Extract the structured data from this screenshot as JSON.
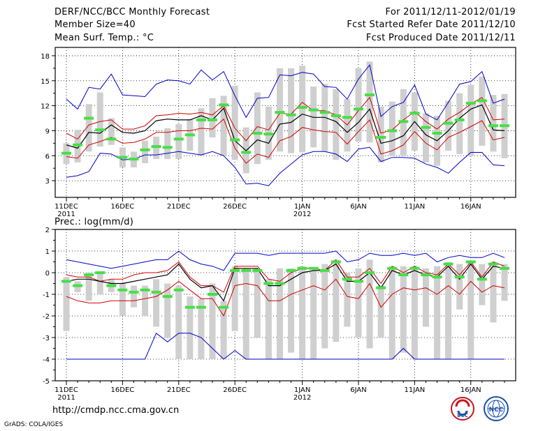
{
  "header": {
    "title": "DERF/NCC/BCC Monthly Forecast",
    "member": "Member Size=40",
    "forecast_period": "For 2011/12/11-2012/01/19",
    "started": "Fcst Started Refer Date 2011/12/10",
    "produced": "Fcst Produced Date 2011/12/11"
  },
  "footer": {
    "url": "http://cmdp.ncc.cma.gov.cn",
    "grads": "GrADS: COLA/IGES",
    "logo_bcc": "BCC",
    "logo_ncc": "NCC"
  },
  "colors": {
    "ensemble_mean": "#000000",
    "std_band": "#d00000",
    "extremes": "#0000c8",
    "member_bar": "#cfcfcf",
    "member_median": "#44e044",
    "grid": "#000000"
  },
  "chart_data": [
    {
      "type": "line",
      "title": "Mean Surf. Temp.: °C",
      "ylim": [
        1,
        19
      ],
      "yticks": [
        3,
        6,
        9,
        12,
        15,
        18
      ],
      "xlim": [
        0,
        39
      ],
      "x": [
        0,
        1,
        2,
        3,
        4,
        5,
        6,
        7,
        8,
        9,
        10,
        11,
        12,
        13,
        14,
        15,
        16,
        17,
        18,
        19,
        20,
        21,
        22,
        23,
        24,
        25,
        26,
        27,
        28,
        29,
        30,
        31,
        32,
        33,
        34,
        35,
        36,
        37,
        38,
        39
      ],
      "xticks": [
        {
          "x": 0,
          "label": "11DEC",
          "sub": "2011"
        },
        {
          "x": 5,
          "label": "16DEC",
          "sub": ""
        },
        {
          "x": 10,
          "label": "21DEC",
          "sub": ""
        },
        {
          "x": 15,
          "label": "26DEC",
          "sub": ""
        },
        {
          "x": 21,
          "label": "1JAN",
          "sub": "2012"
        },
        {
          "x": 26,
          "label": "6JAN",
          "sub": ""
        },
        {
          "x": 31,
          "label": "11JAN",
          "sub": ""
        },
        {
          "x": 36,
          "label": "16JAN",
          "sub": ""
        }
      ],
      "series": [
        {
          "name": "max",
          "role": "extremes",
          "values": [
            3.4,
            3.6,
            4.1,
            6.3,
            6.2,
            5.5,
            5.6,
            6.1,
            6.1,
            6.3,
            6.5,
            6.3,
            6.1,
            6.5,
            6.0,
            4.6,
            2.6,
            2.7,
            2.4,
            3.9,
            5.0,
            6.1,
            6.5,
            6.5,
            6.2,
            5.3,
            6.8,
            7.0,
            5.3,
            5.8,
            5.8,
            5.7,
            5.0,
            4.6,
            3.9,
            5.2,
            6.4,
            6.4,
            4.9,
            4.8
          ]
        },
        {
          "name": "min_top",
          "role": "extremes",
          "values": [
            12.8,
            11.6,
            14.2,
            14.0,
            15.8,
            13.3,
            13.2,
            13.1,
            14.6,
            15.1,
            15.0,
            14.6,
            16.3,
            15.1,
            16.1,
            13.2,
            10.6,
            12.9,
            13.0,
            15.7,
            15.6,
            16.0,
            15.8,
            14.3,
            14.2,
            12.8,
            15.2,
            16.9,
            10.7,
            11.9,
            12.4,
            14.5,
            11.0,
            10.3,
            12.4,
            14.6,
            14.9,
            16.1,
            12.3,
            12.8
          ]
        },
        {
          "name": "upper",
          "role": "std",
          "values": [
            8.7,
            8.0,
            9.7,
            10.1,
            10.3,
            9.2,
            9.2,
            9.6,
            10.8,
            10.9,
            11.1,
            11.0,
            11.2,
            10.9,
            12.0,
            9.3,
            7.8,
            9.5,
            9.1,
            11.1,
            11.0,
            12.4,
            11.4,
            11.4,
            10.9,
            9.7,
            11.4,
            13.0,
            8.7,
            9.1,
            10.3,
            11.3,
            10.1,
            9.2,
            10.4,
            11.2,
            12.2,
            13.0,
            10.3,
            10.4
          ]
        },
        {
          "name": "mean",
          "role": "mean",
          "values": [
            7.3,
            6.9,
            8.8,
            8.7,
            9.7,
            8.8,
            8.7,
            9.0,
            10.2,
            10.4,
            10.3,
            10.3,
            10.8,
            10.3,
            11.7,
            7.8,
            6.6,
            7.9,
            7.5,
            9.8,
            10.0,
            11.0,
            10.6,
            10.6,
            10.1,
            8.8,
            10.0,
            11.6,
            7.5,
            7.8,
            8.4,
            10.1,
            8.5,
            7.8,
            9.0,
            10.5,
            11.6,
            12.1,
            9.1,
            9.0
          ]
        },
        {
          "name": "lower",
          "role": "std",
          "values": [
            5.9,
            5.7,
            7.3,
            7.7,
            8.2,
            7.5,
            7.6,
            8.0,
            8.8,
            8.8,
            9.0,
            9.0,
            9.3,
            9.2,
            10.4,
            6.9,
            5.1,
            6.2,
            5.8,
            7.8,
            8.3,
            9.4,
            9.1,
            8.9,
            8.8,
            7.4,
            8.9,
            10.3,
            6.2,
            6.6,
            7.3,
            8.9,
            7.5,
            6.7,
            8.2,
            8.8,
            9.5,
            10.2,
            7.9,
            8.2
          ]
        }
      ],
      "bars": {
        "low": [
          5.0,
          5.2,
          6.5,
          7.1,
          7.3,
          4.6,
          4.6,
          5.1,
          5.6,
          5.6,
          5.6,
          6.6,
          6.0,
          8.2,
          6.0,
          5.5,
          3.9,
          5.0,
          5.5,
          6.5,
          6.3,
          6.4,
          7.0,
          6.5,
          5.5,
          6.5,
          7.7,
          7.6,
          5.2,
          6.0,
          6.0,
          6.6,
          5.2,
          4.8,
          6.6,
          6.2,
          6.0,
          7.2,
          6.5,
          5.7
        ],
        "high": [
          7.5,
          9.1,
          12.2,
          13.6,
          10.5,
          7.0,
          6.5,
          7.8,
          8.3,
          9.3,
          9.8,
          10.4,
          11.7,
          12.9,
          13.2,
          14.4,
          9.4,
          13.6,
          11.9,
          16.5,
          16.5,
          16.8,
          14.3,
          14.6,
          14.0,
          12.8,
          16.5,
          17.3,
          11.9,
          12.5,
          14.0,
          13.6,
          11.1,
          10.8,
          12.6,
          13.5,
          14.5,
          15.5,
          13.3,
          13.4
        ],
        "median": [
          6.3,
          7.3,
          10.5,
          9.1,
          8.0,
          5.8,
          5.6,
          6.7,
          7.1,
          7.0,
          8.0,
          8.5,
          10.3,
          10.3,
          12.1,
          7.9,
          6.4,
          8.7,
          8.6,
          11.2,
          10.9,
          11.8,
          11.5,
          11.2,
          10.8,
          10.6,
          11.6,
          13.3,
          8.2,
          9.0,
          10.1,
          11.1,
          9.4,
          8.7,
          9.9,
          10.3,
          12.3,
          12.6,
          9.6,
          9.6
        ]
      }
    },
    {
      "type": "line",
      "title": "Prec.: log(mm/d)",
      "ylim": [
        -5,
        2
      ],
      "yticks": [
        -5,
        -4,
        -3,
        -2,
        -1,
        0,
        1,
        2
      ],
      "xlim": [
        0,
        39
      ],
      "xticks": [
        {
          "x": 0,
          "label": "11DEC",
          "sub": "2011"
        },
        {
          "x": 5,
          "label": "16DEC",
          "sub": ""
        },
        {
          "x": 10,
          "label": "21DEC",
          "sub": ""
        },
        {
          "x": 15,
          "label": "26DEC",
          "sub": ""
        },
        {
          "x": 21,
          "label": "1JAN",
          "sub": "2012"
        },
        {
          "x": 26,
          "label": "6JAN",
          "sub": ""
        },
        {
          "x": 31,
          "label": "11JAN",
          "sub": ""
        },
        {
          "x": 36,
          "label": "16JAN",
          "sub": ""
        }
      ],
      "series": [
        {
          "name": "max_top",
          "role": "extremes",
          "values": [
            0.6,
            0.5,
            0.4,
            0.3,
            0.2,
            0.3,
            0.4,
            0.5,
            0.6,
            0.6,
            1.0,
            0.6,
            0.4,
            0.3,
            0.1,
            0.9,
            0.9,
            0.9,
            0.8,
            0.9,
            0.9,
            0.9,
            0.9,
            0.9,
            1.0,
            0.5,
            0.6,
            0.9,
            0.8,
            0.8,
            0.9,
            0.8,
            0.9,
            0.5,
            0.7,
            0.8,
            0.7,
            0.7,
            0.9,
            0.7
          ]
        },
        {
          "name": "upper",
          "role": "std",
          "values": [
            -0.1,
            -0.2,
            -0.2,
            -0.4,
            -0.3,
            -0.3,
            -0.1,
            0.0,
            0.0,
            0.1,
            0.5,
            -0.2,
            -0.6,
            -0.6,
            -0.9,
            0.3,
            0.3,
            0.3,
            -0.3,
            -0.4,
            0.0,
            0.2,
            0.2,
            0.1,
            0.6,
            -0.2,
            -0.2,
            0.2,
            -0.5,
            0.3,
            0.0,
            0.3,
            0.0,
            -0.1,
            0.4,
            -0.1,
            0.5,
            -0.2,
            0.5,
            0.3
          ]
        },
        {
          "name": "mean",
          "role": "mean",
          "values": [
            -0.4,
            -0.3,
            -0.3,
            -0.4,
            -0.5,
            -0.5,
            -0.4,
            -0.3,
            -0.2,
            -0.1,
            0.4,
            -0.3,
            -0.7,
            -0.6,
            -1.3,
            0.2,
            0.2,
            0.2,
            -0.6,
            -0.6,
            -0.3,
            0.0,
            0.1,
            0.1,
            0.4,
            -0.4,
            -0.4,
            0.0,
            -0.7,
            0.1,
            -0.1,
            0.1,
            -0.1,
            -0.2,
            0.3,
            -0.3,
            0.4,
            -0.3,
            0.3,
            0.2
          ]
        },
        {
          "name": "lower",
          "role": "std",
          "values": [
            -1.1,
            -1.3,
            -1.4,
            -1.4,
            -1.3,
            -1.3,
            -1.3,
            -1.2,
            -1.1,
            -0.8,
            -0.4,
            -0.8,
            -1.2,
            -1.2,
            -2.0,
            -0.6,
            -0.5,
            -0.6,
            -1.3,
            -1.3,
            -1.0,
            -0.8,
            -0.6,
            -0.8,
            -0.3,
            -1.1,
            -1.2,
            -0.5,
            -1.6,
            -1.0,
            -0.7,
            -0.8,
            -0.7,
            -1.0,
            -0.6,
            -1.0,
            -0.4,
            -0.9,
            -0.6,
            -0.7
          ]
        },
        {
          "name": "min",
          "role": "extremes",
          "values": [
            -4.0,
            -4.0,
            -4.0,
            -4.0,
            -4.0,
            -4.0,
            -4.0,
            -4.0,
            -2.8,
            -3.2,
            -2.8,
            -2.8,
            -3.0,
            -3.5,
            -4.0,
            -3.6,
            -4.0,
            -4.0,
            -4.0,
            -4.0,
            -4.0,
            -4.0,
            -4.0,
            -4.0,
            -4.0,
            -4.0,
            -4.0,
            -4.0,
            -4.0,
            -4.0,
            -3.5,
            -4.0,
            -4.0,
            -4.0,
            -4.0,
            -4.0,
            -4.0,
            -4.0,
            -4.0,
            -4.0
          ]
        }
      ],
      "bars": {
        "low": [
          -2.7,
          -0.9,
          -1.3,
          -1.0,
          -0.9,
          -2.0,
          -1.6,
          -2.0,
          -2.5,
          -3.0,
          -4.0,
          -4.0,
          -4.0,
          -4.0,
          -4.0,
          -2.7,
          -4.0,
          -3.0,
          -4.0,
          -4.0,
          -3.7,
          -4.0,
          -4.0,
          -3.5,
          -3.2,
          -2.5,
          -3.0,
          -3.5,
          -3.0,
          -4.0,
          -3.7,
          -4.0,
          -2.5,
          -4.0,
          -4.0,
          -1.7,
          -4.0,
          -1.5,
          -2.3,
          -1.3
        ],
        "high": [
          -0.2,
          -0.4,
          0.0,
          0.0,
          -0.3,
          -0.5,
          -0.6,
          -0.6,
          -0.3,
          -0.5,
          -0.6,
          -1.1,
          -1.2,
          -0.5,
          -1.3,
          0.3,
          0.2,
          0.2,
          -0.3,
          0.2,
          0.2,
          0.3,
          0.1,
          0.4,
          0.6,
          0.0,
          0.2,
          0.6,
          -0.6,
          0.3,
          0.3,
          0.3,
          0.2,
          0.3,
          0.5,
          0.4,
          0.5,
          0.4,
          0.5,
          0.4
        ],
        "median": [
          -0.4,
          -0.6,
          -0.1,
          0.0,
          -0.6,
          -0.8,
          -0.9,
          -0.8,
          -0.9,
          -1.1,
          -0.8,
          -1.6,
          -1.6,
          -1.0,
          -1.6,
          0.1,
          0.1,
          0.1,
          -0.5,
          -0.5,
          0.1,
          0.2,
          0.2,
          0.1,
          0.5,
          -0.3,
          -0.4,
          -0.0,
          -0.7,
          0.2,
          -0.1,
          0.2,
          -0.1,
          -0.2,
          0.4,
          -0.2,
          0.5,
          -0.3,
          0.4,
          0.2
        ]
      }
    }
  ]
}
